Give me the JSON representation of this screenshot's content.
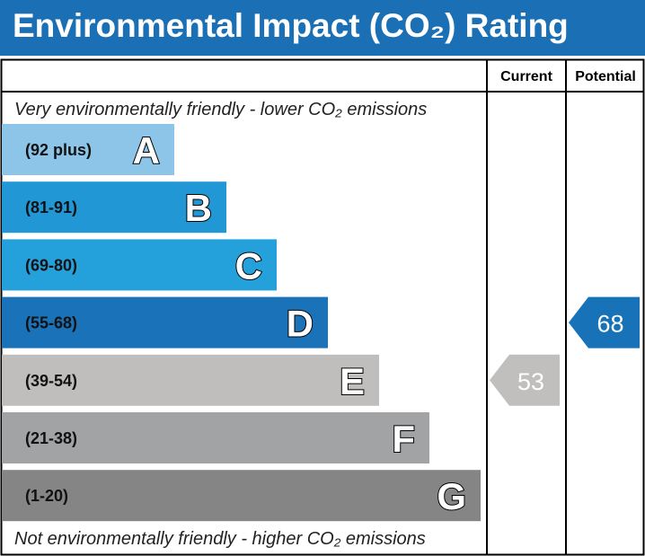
{
  "title": "Environmental Impact (CO₂) Rating",
  "header": {
    "current": "Current",
    "potential": "Potential"
  },
  "top_note": "Very environmentally friendly - lower CO₂ emissions",
  "bottom_note": "Not environmentally friendly - higher CO₂ emissions",
  "chart_data": {
    "type": "bar",
    "bands": [
      {
        "letter": "A",
        "range": "(92 plus)",
        "color": "#8cc5e8"
      },
      {
        "letter": "B",
        "range": "(81-91)",
        "color": "#2297d6"
      },
      {
        "letter": "C",
        "range": "(69-80)",
        "color": "#24a0db"
      },
      {
        "letter": "D",
        "range": "(55-68)",
        "color": "#1a72b8"
      },
      {
        "letter": "E",
        "range": "(39-54)",
        "color": "#bfbebc"
      },
      {
        "letter": "F",
        "range": "(21-38)",
        "color": "#a2a3a5"
      },
      {
        "letter": "G",
        "range": "(1-20)",
        "color": "#858585"
      }
    ],
    "current": {
      "value": "53",
      "band": "E",
      "color": "#c0bfbd"
    },
    "potential": {
      "value": "68",
      "band": "D",
      "color": "#1872b8"
    }
  }
}
